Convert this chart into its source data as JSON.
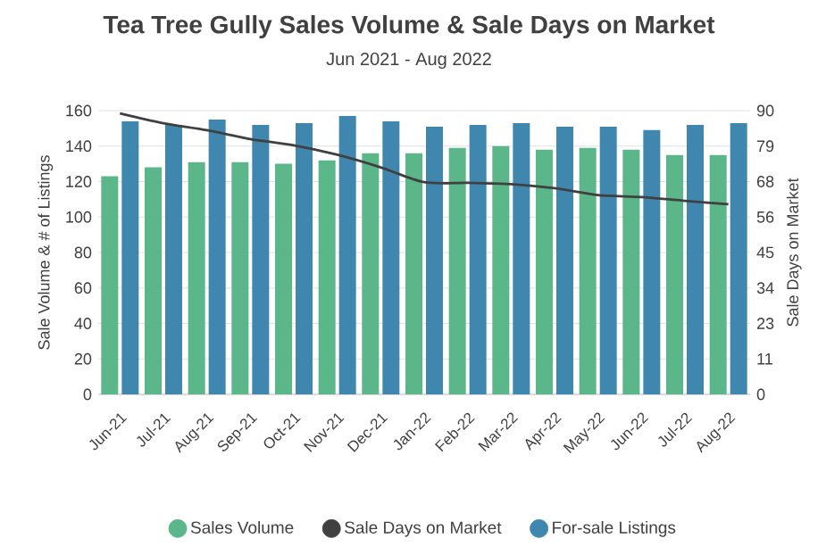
{
  "chart_data": {
    "type": "bar",
    "title": "Tea Tree Gully Sales Volume & Sale Days on Market",
    "subtitle": "Jun 2021 - Aug 2022",
    "ylabel": "Sale Volume & # of Listings",
    "y2label": "Sale Days on Market",
    "categories": [
      "Jun-21",
      "Jul-21",
      "Aug-21",
      "Sep-21",
      "Oct-21",
      "Nov-21",
      "Dec-21",
      "Jan-22",
      "Feb-22",
      "Mar-22",
      "Apr-22",
      "May-22",
      "Jun-22",
      "Jul-22",
      "Aug-22"
    ],
    "series": [
      {
        "name": "Sales Volume",
        "type": "bar",
        "color": "#5bb68a",
        "values": [
          123,
          128,
          131,
          131,
          130,
          132,
          136,
          136,
          139,
          140,
          138,
          139,
          138,
          135,
          135
        ]
      },
      {
        "name": "Sale Days on Market",
        "type": "line",
        "axis": "y2",
        "color": "#404040",
        "marker": "none",
        "line_style": "solid",
        "values": [
          89.1,
          86,
          83.8,
          81,
          79,
          76,
          72,
          67.3,
          67.1,
          66.7,
          65.4,
          63.2,
          62.6,
          61.4,
          60.3
        ]
      },
      {
        "name": "For-sale Listings",
        "type": "bar",
        "color": "#3f87ae",
        "values": [
          154,
          152,
          155,
          152,
          153,
          157,
          154,
          151,
          152,
          153,
          151,
          151,
          149,
          152,
          153
        ]
      }
    ],
    "ylim": [
      0,
      160
    ],
    "yticks": [
      0,
      20,
      40,
      60,
      80,
      100,
      120,
      140,
      160
    ],
    "y2lim": [
      0,
      90
    ],
    "y2ticks": [
      {
        "value": 0,
        "label": "0"
      },
      {
        "value": 11.25,
        "label": "11"
      },
      {
        "value": 22.5,
        "label": "23"
      },
      {
        "value": 33.75,
        "label": "34"
      },
      {
        "value": 45,
        "label": "45"
      },
      {
        "value": 56.25,
        "label": "56"
      },
      {
        "value": 67.5,
        "label": "68"
      },
      {
        "value": 78.75,
        "label": "79"
      },
      {
        "value": 90,
        "label": "90"
      }
    ],
    "grid": "y",
    "legend": "bottom"
  }
}
